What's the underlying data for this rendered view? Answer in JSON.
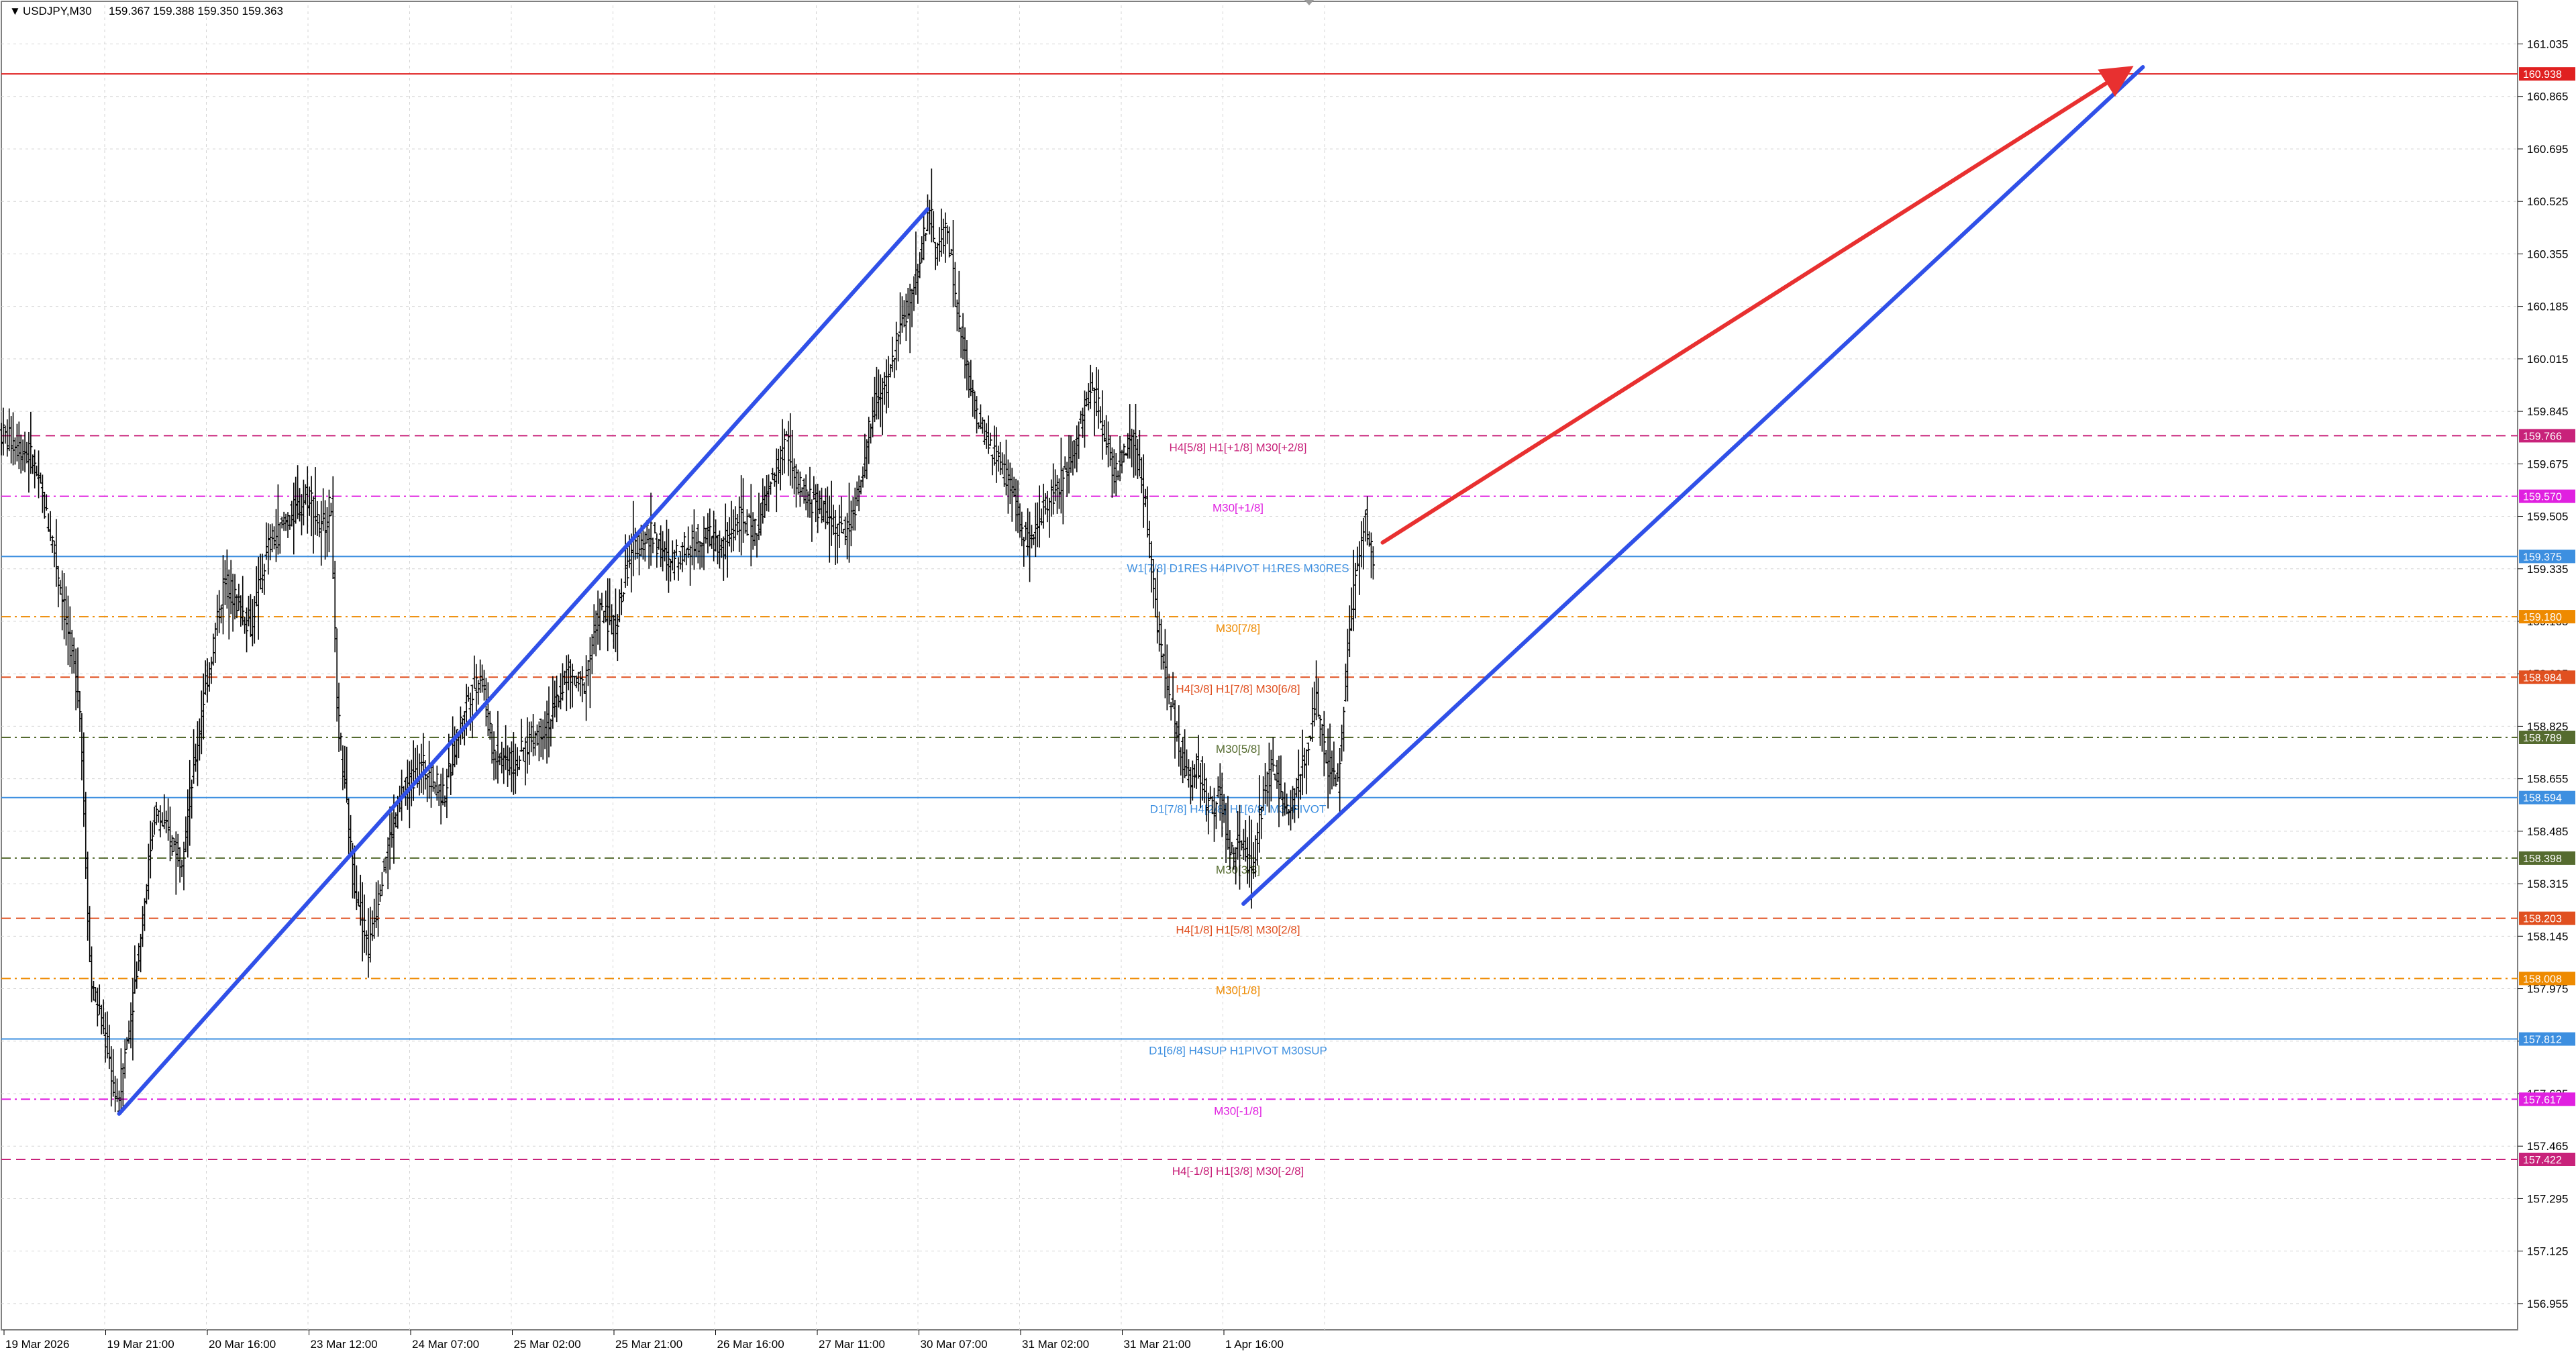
{
  "header": {
    "symbol": "USDJPY,M30",
    "ohlc": "159.367 159.388 159.350 159.363"
  },
  "chart_data": {
    "type": "candlestick",
    "symbol": "USDJPY",
    "timeframe": "M30",
    "ylim": [
      156.87,
      161.16
    ],
    "grid": true,
    "y_ticks": [
      "161.035",
      "160.865",
      "160.695",
      "160.525",
      "160.355",
      "160.185",
      "160.015",
      "159.845",
      "159.675",
      "159.505",
      "159.335",
      "159.165",
      "158.995",
      "158.825",
      "158.655",
      "158.485",
      "158.315",
      "158.145",
      "157.975",
      "157.805",
      "157.635",
      "157.465",
      "157.295",
      "157.125",
      "156.955"
    ],
    "x_labels": [
      "19 Mar 2026",
      "19 Mar 21:00",
      "20 Mar 16:00",
      "23 Mar 12:00",
      "24 Mar 07:00",
      "25 Mar 02:00",
      "25 Mar 21:00",
      "26 Mar 16:00",
      "27 Mar 11:00",
      "30 Mar 07:00",
      "31 Mar 02:00",
      "31 Mar 21:00",
      "1 Apr 16:00"
    ],
    "price_path": [
      [
        0,
        159.78
      ],
      [
        0.03,
        159.7
      ],
      [
        0.05,
        159.42
      ],
      [
        0.075,
        158.9
      ],
      [
        0.085,
        158.0
      ],
      [
        0.1,
        157.8
      ],
      [
        0.11,
        157.59
      ],
      [
        0.125,
        157.95
      ],
      [
        0.145,
        158.55
      ],
      [
        0.17,
        158.4
      ],
      [
        0.19,
        158.9
      ],
      [
        0.21,
        159.3
      ],
      [
        0.235,
        159.15
      ],
      [
        0.25,
        159.4
      ],
      [
        0.27,
        159.5
      ],
      [
        0.29,
        159.58
      ],
      [
        0.3,
        159.45
      ],
      [
        0.31,
        159.55
      ],
      [
        0.315,
        158.9
      ],
      [
        0.33,
        158.35
      ],
      [
        0.345,
        158.1
      ],
      [
        0.36,
        158.4
      ],
      [
        0.375,
        158.6
      ],
      [
        0.395,
        158.7
      ],
      [
        0.415,
        158.6
      ],
      [
        0.435,
        158.9
      ],
      [
        0.45,
        159.0
      ],
      [
        0.46,
        158.75
      ],
      [
        0.48,
        158.7
      ],
      [
        0.5,
        158.8
      ],
      [
        0.515,
        158.85
      ],
      [
        0.53,
        159.0
      ],
      [
        0.545,
        158.95
      ],
      [
        0.56,
        159.2
      ],
      [
        0.575,
        159.15
      ],
      [
        0.59,
        159.4
      ],
      [
        0.61,
        159.45
      ],
      [
        0.625,
        159.35
      ],
      [
        0.64,
        159.4
      ],
      [
        0.66,
        159.45
      ],
      [
        0.675,
        159.4
      ],
      [
        0.69,
        159.5
      ],
      [
        0.705,
        159.45
      ],
      [
        0.72,
        159.6
      ],
      [
        0.735,
        159.75
      ],
      [
        0.745,
        159.6
      ],
      [
        0.76,
        159.55
      ],
      [
        0.775,
        159.5
      ],
      [
        0.79,
        159.45
      ],
      [
        0.805,
        159.6
      ],
      [
        0.815,
        159.85
      ],
      [
        0.83,
        159.95
      ],
      [
        0.84,
        160.1
      ],
      [
        0.85,
        160.2
      ],
      [
        0.86,
        160.35
      ],
      [
        0.865,
        160.45
      ],
      [
        0.87,
        160.48
      ],
      [
        0.875,
        160.35
      ],
      [
        0.885,
        160.45
      ],
      [
        0.895,
        160.15
      ],
      [
        0.905,
        159.95
      ],
      [
        0.915,
        159.8
      ],
      [
        0.93,
        159.7
      ],
      [
        0.945,
        159.6
      ],
      [
        0.955,
        159.45
      ],
      [
        0.965,
        159.4
      ],
      [
        0.975,
        159.55
      ],
      [
        0.99,
        159.6
      ],
      [
        1.0,
        159.7
      ],
      [
        1.01,
        159.8
      ],
      [
        1.02,
        159.95
      ],
      [
        1.03,
        159.8
      ],
      [
        1.04,
        159.65
      ],
      [
        1.05,
        159.7
      ],
      [
        1.06,
        159.75
      ],
      [
        1.07,
        159.55
      ],
      [
        1.08,
        159.2
      ],
      [
        1.09,
        158.95
      ],
      [
        1.1,
        158.8
      ],
      [
        1.11,
        158.65
      ],
      [
        1.12,
        158.7
      ],
      [
        1.13,
        158.55
      ],
      [
        1.14,
        158.6
      ],
      [
        1.15,
        158.4
      ],
      [
        1.16,
        158.45
      ],
      [
        1.17,
        158.35
      ],
      [
        1.18,
        158.6
      ],
      [
        1.19,
        158.7
      ],
      [
        1.2,
        158.55
      ],
      [
        1.21,
        158.6
      ],
      [
        1.22,
        158.75
      ],
      [
        1.23,
        158.9
      ],
      [
        1.24,
        158.7
      ],
      [
        1.25,
        158.65
      ],
      [
        1.255,
        158.85
      ],
      [
        1.26,
        159.15
      ],
      [
        1.265,
        159.25
      ],
      [
        1.27,
        159.4
      ],
      [
        1.275,
        159.5
      ],
      [
        1.28,
        159.4
      ],
      [
        1.283,
        159.36
      ]
    ],
    "levels": [
      {
        "price": 160.938,
        "label": "",
        "style": "solid",
        "color": "#e02020",
        "tag": "160.938"
      },
      {
        "price": 159.766,
        "label": "H4[5/8] H1[+1/8] M30[+2/8]",
        "style": "dash",
        "color": "#c8227a",
        "tag": "159.766"
      },
      {
        "price": 159.57,
        "label": "M30[+1/8]",
        "style": "dashdot",
        "color": "#e020e0",
        "tag": "159.570"
      },
      {
        "price": 159.375,
        "label": "W1[7/8] D1RES H4PIVOT H1RES M30RES",
        "style": "solid",
        "color": "#3d8fe0",
        "tag": "159.375"
      },
      {
        "price": 159.18,
        "label": "M30[7/8]",
        "style": "dashdot",
        "color": "#ee8a00",
        "tag": "159.180"
      },
      {
        "price": 158.984,
        "label": "H4[3/8] H1[7/8] M30[6/8]",
        "style": "dash",
        "color": "#e05020",
        "tag": "158.984"
      },
      {
        "price": 158.789,
        "label": "M30[5/8]",
        "style": "dashdot",
        "color": "#556b2f",
        "tag": "158.789"
      },
      {
        "price": 158.594,
        "label": "D1[7/8] H4[2/8] H1[6/8] M30PIVOT",
        "style": "solid",
        "color": "#3d8fe0",
        "tag": "158.594"
      },
      {
        "price": 158.398,
        "label": "M30[3/8]",
        "style": "dashdot",
        "color": "#556b2f",
        "tag": "158.398"
      },
      {
        "price": 158.203,
        "label": "H4[1/8] H1[5/8] M30[2/8]",
        "style": "dash",
        "color": "#e05020",
        "tag": "158.203"
      },
      {
        "price": 158.008,
        "label": "M30[1/8]",
        "style": "dashdot",
        "color": "#ee8a00",
        "tag": "158.008"
      },
      {
        "price": 157.812,
        "label": "D1[6/8] H4SUP H1PIVOT M30SUP",
        "style": "solid",
        "color": "#3d8fe0",
        "tag": "157.812"
      },
      {
        "price": 157.617,
        "label": "M30[-1/8]",
        "style": "dashdot",
        "color": "#e020e0",
        "tag": "157.617"
      },
      {
        "price": 157.422,
        "label": "H4[-1/8] H1[3/8] M30[-2/8]",
        "style": "dash",
        "color": "#c8227a",
        "tag": "157.422"
      }
    ],
    "trendlines": [
      {
        "name": "up-channel-left",
        "color": "#3050e8",
        "from": [
          0.11,
          157.57
        ],
        "to": [
          0.865,
          160.5
        ]
      },
      {
        "name": "up-channel-right",
        "color": "#3050e8",
        "from": [
          1.16,
          158.25
        ],
        "to": [
          2.0,
          160.96
        ]
      },
      {
        "name": "target-arrow",
        "color": "#e83030",
        "from": [
          1.29,
          159.42
        ],
        "to": [
          1.985,
          160.95
        ],
        "arrow": true
      }
    ],
    "colors": {
      "candle": "#000000",
      "grid": "#d4d4d4",
      "background": "#ffffff"
    }
  }
}
